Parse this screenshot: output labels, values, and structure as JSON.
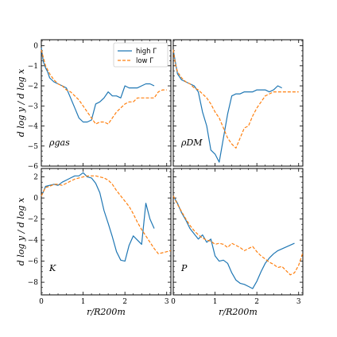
{
  "chart_data": [
    {
      "type": "line",
      "panel": "top-left",
      "annotation": "ρgas",
      "xlim": [
        0,
        3.1
      ],
      "ylim": [
        -6,
        0.3
      ],
      "xticks": [
        0,
        1,
        2,
        3
      ],
      "yticks": [
        0,
        -1,
        -2,
        -3,
        -4,
        -5,
        -6
      ],
      "ylabel": "d log y / d log x",
      "series": [
        {
          "name": "high Γ",
          "color": "#1f77b4",
          "x": [
            0,
            0.05,
            0.1,
            0.15,
            0.2,
            0.3,
            0.4,
            0.5,
            0.6,
            0.7,
            0.8,
            0.9,
            1.0,
            1.1,
            1.2,
            1.3,
            1.4,
            1.5,
            1.6,
            1.7,
            1.8,
            1.9,
            2.0,
            2.1,
            2.2,
            2.3,
            2.4,
            2.5,
            2.6,
            2.7
          ],
          "y": [
            -0.1,
            -0.8,
            -1.1,
            -1.3,
            -1.6,
            -1.8,
            -1.9,
            -2.0,
            -2.1,
            -2.6,
            -3.1,
            -3.6,
            -3.8,
            -3.8,
            -3.7,
            -2.9,
            -2.8,
            -2.6,
            -2.3,
            -2.5,
            -2.5,
            -2.6,
            -2.0,
            -2.1,
            -2.1,
            -2.1,
            -2.0,
            -1.9,
            -1.9,
            -2.0
          ]
        },
        {
          "name": "low Γ",
          "color": "#ff7f0e",
          "x": [
            0,
            0.05,
            0.1,
            0.2,
            0.3,
            0.4,
            0.5,
            0.6,
            0.7,
            0.8,
            0.9,
            1.0,
            1.1,
            1.2,
            1.3,
            1.4,
            1.5,
            1.6,
            1.7,
            1.8,
            1.9,
            2.0,
            2.1,
            2.2,
            2.3,
            2.4,
            2.5,
            2.6,
            2.7,
            2.8,
            2.9,
            3.0
          ],
          "y": [
            -0.2,
            -0.6,
            -1.0,
            -1.4,
            -1.7,
            -1.9,
            -2.0,
            -2.2,
            -2.3,
            -2.5,
            -2.7,
            -3.0,
            -3.3,
            -3.6,
            -3.9,
            -3.8,
            -3.8,
            -3.9,
            -3.6,
            -3.3,
            -3.1,
            -2.9,
            -2.8,
            -2.8,
            -2.6,
            -2.6,
            -2.6,
            -2.6,
            -2.6,
            -2.3,
            -2.2,
            -2.2
          ]
        }
      ],
      "legend": "top-right"
    },
    {
      "type": "line",
      "panel": "top-right",
      "annotation": "ρDM",
      "xlim": [
        0,
        3.1
      ],
      "ylim": [
        -6,
        0.3
      ],
      "xticks": [
        0,
        1,
        2,
        3
      ],
      "series": [
        {
          "name": "high Γ",
          "color": "#1f77b4",
          "x": [
            0,
            0.05,
            0.1,
            0.2,
            0.3,
            0.4,
            0.5,
            0.6,
            0.7,
            0.8,
            0.9,
            1.0,
            1.1,
            1.2,
            1.3,
            1.4,
            1.5,
            1.6,
            1.7,
            1.8,
            1.9,
            2.0,
            2.1,
            2.2,
            2.3,
            2.4,
            2.5,
            2.6
          ],
          "y": [
            -0.2,
            -0.8,
            -1.4,
            -1.7,
            -1.8,
            -1.9,
            -2.0,
            -2.3,
            -3.3,
            -4.0,
            -5.2,
            -5.4,
            -5.8,
            -4.6,
            -3.4,
            -2.5,
            -2.4,
            -2.4,
            -2.3,
            -2.3,
            -2.3,
            -2.2,
            -2.2,
            -2.2,
            -2.3,
            -2.2,
            -2.0,
            -2.1
          ]
        },
        {
          "name": "low Γ",
          "color": "#ff7f0e",
          "x": [
            0,
            0.05,
            0.1,
            0.2,
            0.3,
            0.4,
            0.5,
            0.6,
            0.7,
            0.8,
            0.9,
            1.0,
            1.1,
            1.2,
            1.3,
            1.4,
            1.5,
            1.6,
            1.7,
            1.8,
            1.9,
            2.0,
            2.2,
            2.4,
            2.6,
            2.8,
            3.0
          ],
          "y": [
            -0.2,
            -0.9,
            -1.3,
            -1.6,
            -1.8,
            -1.9,
            -2.1,
            -2.2,
            -2.4,
            -2.6,
            -2.9,
            -3.3,
            -3.6,
            -4.1,
            -4.6,
            -4.9,
            -5.1,
            -4.6,
            -4.1,
            -4.0,
            -3.5,
            -3.1,
            -2.5,
            -2.3,
            -2.3,
            -2.3,
            -2.3
          ]
        }
      ]
    },
    {
      "type": "line",
      "panel": "bottom-left",
      "annotation": "K",
      "xlim": [
        0,
        3.1
      ],
      "ylim": [
        -9.2,
        2.8
      ],
      "xticks": [
        0,
        1,
        2,
        3
      ],
      "yticks": [
        2,
        0,
        -2,
        -4,
        -6,
        -8
      ],
      "xlabel": "r/R200m",
      "ylabel": "d log y / d log x",
      "series": [
        {
          "name": "high Γ",
          "color": "#1f77b4",
          "x": [
            0,
            0.05,
            0.1,
            0.2,
            0.3,
            0.4,
            0.5,
            0.6,
            0.7,
            0.8,
            0.9,
            1.0,
            1.1,
            1.2,
            1.3,
            1.4,
            1.5,
            1.6,
            1.7,
            1.8,
            1.9,
            2.0,
            2.1,
            2.2,
            2.3,
            2.4,
            2.5,
            2.6,
            2.7
          ],
          "y": [
            0.2,
            0.6,
            1.1,
            1.2,
            1.3,
            1.2,
            1.5,
            1.7,
            1.9,
            2.1,
            2.1,
            2.4,
            2.0,
            1.9,
            1.4,
            0.5,
            -1.2,
            -2.4,
            -3.7,
            -5.1,
            -5.9,
            -6.0,
            -4.5,
            -3.6,
            -4.0,
            -4.4,
            -0.5,
            -2.0,
            -2.9
          ]
        },
        {
          "name": "low Γ",
          "color": "#ff7f0e",
          "x": [
            0,
            0.05,
            0.1,
            0.2,
            0.3,
            0.4,
            0.5,
            0.6,
            0.7,
            0.8,
            0.9,
            1.0,
            1.1,
            1.2,
            1.3,
            1.4,
            1.5,
            1.6,
            1.7,
            1.8,
            1.9,
            2.0,
            2.1,
            2.2,
            2.3,
            2.4,
            2.5,
            2.6,
            2.7,
            2.8,
            2.9,
            3.0,
            3.1
          ],
          "y": [
            0.2,
            0.6,
            1.0,
            1.1,
            1.3,
            1.3,
            1.2,
            1.4,
            1.6,
            1.8,
            1.9,
            2.0,
            2.1,
            2.1,
            2.1,
            2.0,
            1.9,
            1.7,
            1.3,
            0.7,
            0.2,
            -0.3,
            -0.8,
            -1.5,
            -2.3,
            -3.0,
            -3.6,
            -4.2,
            -4.8,
            -5.3,
            -5.2,
            -5.1,
            -5.0
          ]
        }
      ]
    },
    {
      "type": "line",
      "panel": "bottom-right",
      "annotation": "P",
      "xlim": [
        0,
        3.1
      ],
      "ylim": [
        -9.2,
        2.8
      ],
      "xticks": [
        0,
        1,
        2,
        3
      ],
      "xlabel": "r/R200m",
      "series": [
        {
          "name": "high Γ",
          "color": "#1f77b4",
          "x": [
            0,
            0.1,
            0.2,
            0.3,
            0.4,
            0.5,
            0.6,
            0.7,
            0.8,
            0.9,
            1.0,
            1.1,
            1.2,
            1.3,
            1.4,
            1.5,
            1.6,
            1.7,
            1.8,
            1.9,
            2.0,
            2.1,
            2.2,
            2.3,
            2.4,
            2.5,
            2.9
          ],
          "y": [
            0.2,
            -0.5,
            -1.4,
            -2.1,
            -2.9,
            -3.4,
            -3.9,
            -3.5,
            -4.2,
            -3.9,
            -5.5,
            -6.0,
            -5.9,
            -6.2,
            -7.1,
            -7.8,
            -8.1,
            -8.2,
            -8.4,
            -8.6,
            -7.9,
            -7.0,
            -6.2,
            -5.7,
            -5.3,
            -5.0,
            -4.3
          ]
        },
        {
          "name": "low Γ",
          "color": "#ff7f0e",
          "x": [
            0,
            0.1,
            0.2,
            0.3,
            0.4,
            0.5,
            0.6,
            0.7,
            0.8,
            0.9,
            1.0,
            1.1,
            1.2,
            1.3,
            1.4,
            1.5,
            1.6,
            1.7,
            1.8,
            1.9,
            2.0,
            2.1,
            2.2,
            2.3,
            2.4,
            2.5,
            2.6,
            2.7,
            2.8,
            2.9,
            3.0,
            3.1
          ],
          "y": [
            0.2,
            -0.6,
            -1.3,
            -2.0,
            -2.6,
            -3.1,
            -3.5,
            -3.8,
            -4.0,
            -4.1,
            -4.4,
            -4.3,
            -4.4,
            -4.7,
            -4.3,
            -4.5,
            -4.7,
            -5.0,
            -4.8,
            -4.6,
            -5.1,
            -5.5,
            -5.8,
            -6.1,
            -6.3,
            -6.6,
            -6.5,
            -6.9,
            -7.3,
            -7.1,
            -6.4,
            -5.2
          ]
        }
      ]
    }
  ]
}
